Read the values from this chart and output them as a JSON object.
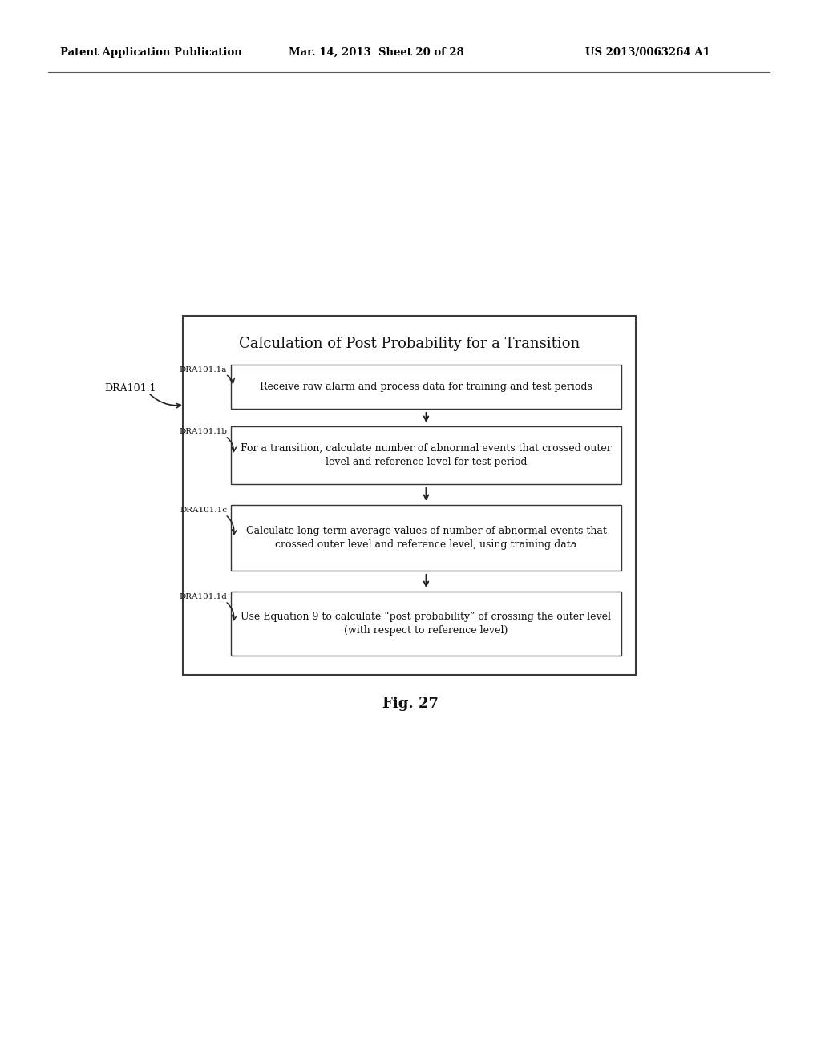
{
  "header_left": "Patent Application Publication",
  "header_mid": "Mar. 14, 2013  Sheet 20 of 28",
  "header_right": "US 2013/0063264 A1",
  "fig_label": "Fig. 27",
  "diagram_title": "Calculation of Post Probability for a Transition",
  "boxes": [
    {
      "label": "DRA101.1a",
      "text_lines": [
        "Receive raw alarm and process data for training and test periods"
      ]
    },
    {
      "label": "DRA101.1b",
      "text_lines": [
        "For a transition, calculate number of abnormal events that crossed outer",
        "level and reference level for test period"
      ]
    },
    {
      "label": "DRA101.1c",
      "text_lines": [
        "Calculate long-term average values of number of abnormal events that",
        "crossed outer level and reference level, using training data"
      ]
    },
    {
      "label": "DRA101.1d",
      "text_lines": [
        "Use Equation 9 to calculate “post probability” of crossing the outer level",
        "(with respect to reference level)"
      ]
    }
  ],
  "outer_label": "DRA101.1",
  "background_color": "#ffffff",
  "box_edge_color": "#444444",
  "text_color": "#111111",
  "header_color": "#000000"
}
